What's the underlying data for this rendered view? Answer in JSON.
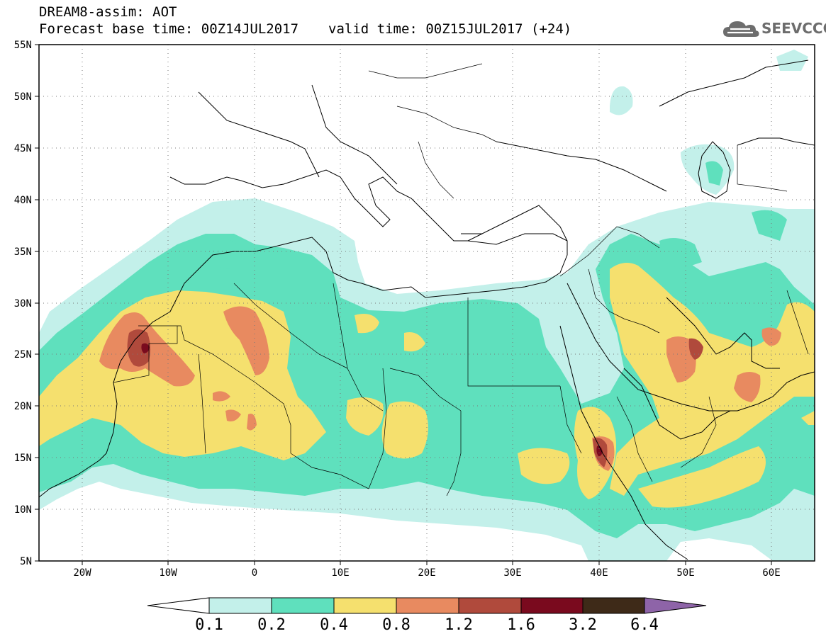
{
  "header": {
    "title": "DREAM8-assim: AOT",
    "base_time_label": "Forecast base time: 00Z14JUL2017",
    "valid_time_label": "valid time: 00Z15JUL2017 (+24)"
  },
  "logo": {
    "text": "SEEVCCC",
    "icon": "cloud-logo-icon"
  },
  "map": {
    "projection": "equirectangular",
    "lon_range": [
      -25,
      65
    ],
    "lat_range": [
      5,
      55
    ],
    "grid": "dotted",
    "x_ticks": [
      "20W",
      "10W",
      "0",
      "10E",
      "20E",
      "30E",
      "40E",
      "50E",
      "60E"
    ],
    "y_ticks": [
      "55N",
      "50N",
      "45N",
      "40N",
      "35N",
      "30N",
      "25N",
      "20N",
      "15N",
      "10N",
      "5N"
    ],
    "colors": {
      "level_1": "#c3f0ea",
      "level_2": "#5fe0bd",
      "level_3": "#f5e06e",
      "level_4": "#e88a60",
      "level_5": "#b04a3c",
      "level_6": "#7a0a1e",
      "level_7": "#3e2a18",
      "over": "#8e64a8"
    }
  },
  "colorbar": {
    "thresholds": [
      "0.1",
      "0.2",
      "0.4",
      "0.8",
      "1.2",
      "1.6",
      "3.2",
      "6.4"
    ],
    "colors": [
      "#c3f0ea",
      "#5fe0bd",
      "#f5e06e",
      "#e88a60",
      "#b04a3c",
      "#7a0a1e",
      "#3e2a18"
    ],
    "under_color": "#ffffff",
    "over_color": "#8e64a8"
  }
}
